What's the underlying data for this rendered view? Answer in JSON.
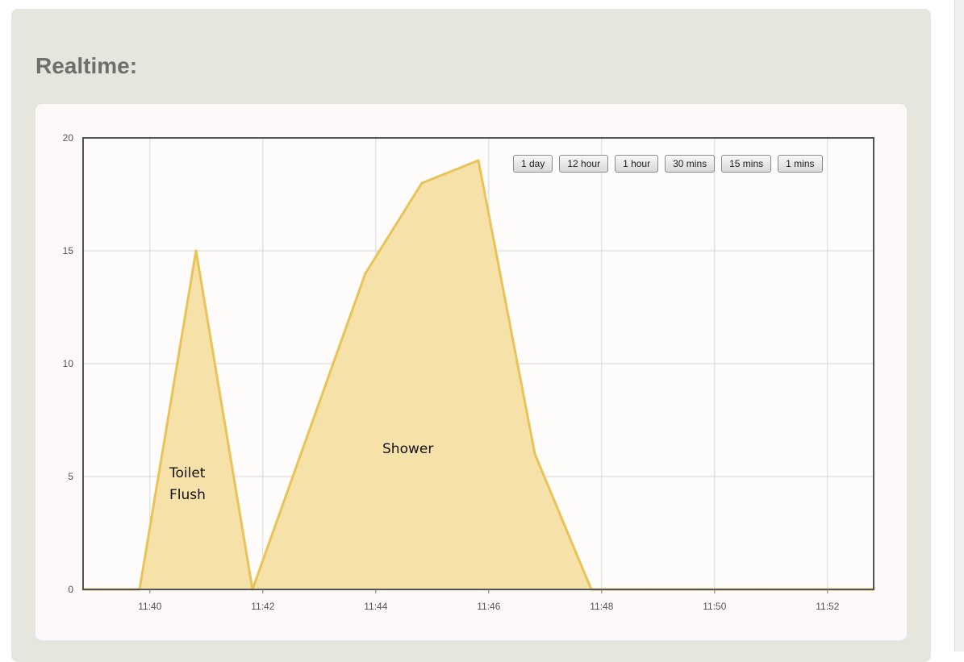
{
  "page": {
    "title": "Realtime:"
  },
  "range_buttons": [
    "1 day",
    "12 hour",
    "1 hour",
    "30 mins",
    "15 mins",
    "1 mins"
  ],
  "chart_data": {
    "type": "area",
    "x": [
      "11:38:49",
      "11:39:49",
      "11:40:49",
      "11:41:49",
      "11:42:49",
      "11:43:49",
      "11:44:49",
      "11:45:49",
      "11:46:49",
      "11:47:49",
      "11:48:49",
      "11:49:49",
      "11:50:49",
      "11:51:49",
      "11:52:49"
    ],
    "values": [
      0,
      0,
      15,
      0,
      7,
      14,
      18,
      19,
      6,
      0,
      0,
      0,
      0,
      0,
      0
    ],
    "xticks": [
      "11:40",
      "11:42",
      "11:44",
      "11:46",
      "11:48",
      "11:50",
      "11:52"
    ],
    "yticks": [
      0,
      5,
      10,
      15,
      20
    ],
    "ylim": [
      0,
      20
    ],
    "annotations": [
      {
        "text": "Toilet\nFlush"
      },
      {
        "text": "Shower"
      }
    ],
    "line_color": "#e8c358",
    "fill_color": "#f6e2a9",
    "grid": true
  }
}
